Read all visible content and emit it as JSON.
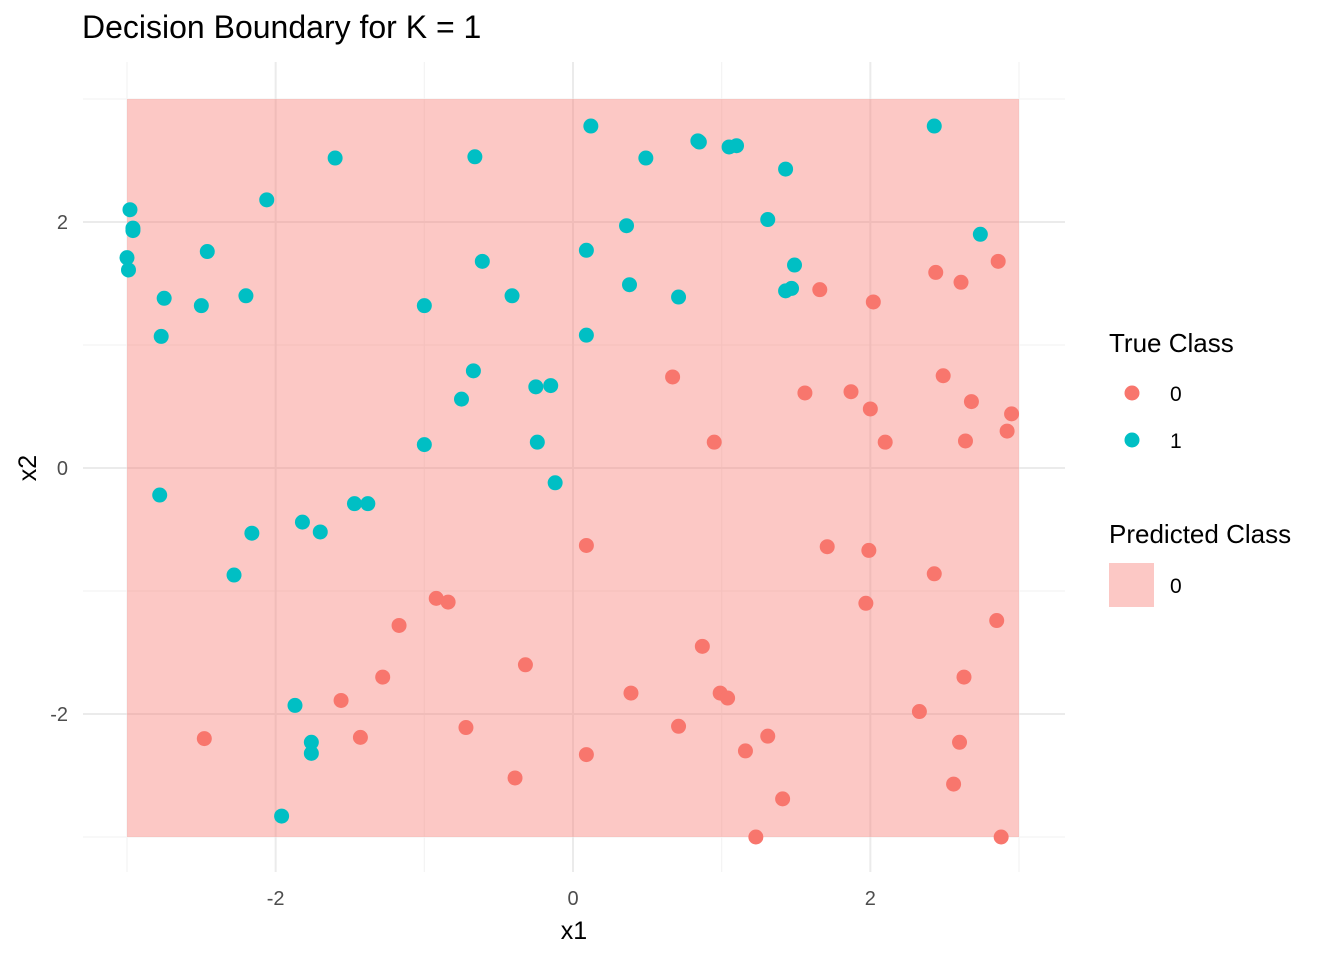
{
  "chart_data": {
    "type": "scatter",
    "title": "Decision Boundary for K = 1",
    "xlabel": "x1",
    "ylabel": "x2",
    "xlim": [
      -3.0,
      3.0
    ],
    "ylim": [
      -3.0,
      3.0
    ],
    "x_ticks": [
      -2,
      0,
      2
    ],
    "y_ticks": [
      -2,
      0,
      2
    ],
    "x_tick_labels": [
      "-2",
      "0",
      "2"
    ],
    "y_tick_labels": [
      "-2",
      "0",
      "2"
    ],
    "grid": true,
    "legend_position": "right",
    "predicted_region": {
      "class_label": "0",
      "color": "#F8766D",
      "opacity": 0.4,
      "x_range": [
        -3.0,
        3.0
      ],
      "y_range": [
        -3.0,
        3.0
      ]
    },
    "legend": {
      "true_class": {
        "title": "True Class",
        "entries": [
          {
            "label": "0",
            "color": "#F8766D"
          },
          {
            "label": "1",
            "color": "#00BFC4"
          }
        ]
      },
      "predicted_class": {
        "title": "Predicted Class",
        "entries": [
          {
            "label": "0",
            "color": "#F8766D"
          }
        ]
      }
    },
    "series": [
      {
        "class": "0",
        "color": "#F8766D",
        "points": [
          [
            0.67,
            0.74
          ],
          [
            0.95,
            0.21
          ],
          [
            1.56,
            0.61
          ],
          [
            1.66,
            1.45
          ],
          [
            1.87,
            0.62
          ],
          [
            2.0,
            0.48
          ],
          [
            2.02,
            1.35
          ],
          [
            2.1,
            0.21
          ],
          [
            2.44,
            1.59
          ],
          [
            2.49,
            0.75
          ],
          [
            2.61,
            1.51
          ],
          [
            2.68,
            0.54
          ],
          [
            2.64,
            0.22
          ],
          [
            2.86,
            1.68
          ],
          [
            2.92,
            0.3
          ],
          [
            2.95,
            0.44
          ],
          [
            0.09,
            -0.63
          ],
          [
            1.71,
            -0.64
          ],
          [
            1.99,
            -0.67
          ],
          [
            1.97,
            -1.1
          ],
          [
            2.43,
            -0.86
          ],
          [
            2.85,
            -1.24
          ],
          [
            -0.92,
            -1.06
          ],
          [
            -0.84,
            -1.09
          ],
          [
            -1.17,
            -1.28
          ],
          [
            -0.32,
            -1.6
          ],
          [
            -1.28,
            -1.7
          ],
          [
            -1.56,
            -1.89
          ],
          [
            -1.43,
            -2.19
          ],
          [
            -2.48,
            -2.2
          ],
          [
            -0.72,
            -2.11
          ],
          [
            -0.39,
            -2.52
          ],
          [
            0.09,
            -2.33
          ],
          [
            0.39,
            -1.83
          ],
          [
            0.71,
            -2.1
          ],
          [
            0.87,
            -1.45
          ],
          [
            0.99,
            -1.83
          ],
          [
            1.04,
            -1.87
          ],
          [
            1.16,
            -2.3
          ],
          [
            1.31,
            -2.18
          ],
          [
            1.41,
            -2.69
          ],
          [
            1.23,
            -3.0
          ],
          [
            2.33,
            -1.98
          ],
          [
            2.6,
            -2.23
          ],
          [
            2.63,
            -1.7
          ],
          [
            2.56,
            -2.57
          ],
          [
            2.88,
            -3.0
          ]
        ]
      },
      {
        "class": "1",
        "color": "#00BFC4",
        "points": [
          [
            -2.98,
            2.1
          ],
          [
            -2.96,
            1.95
          ],
          [
            -2.96,
            1.93
          ],
          [
            -3.0,
            1.71
          ],
          [
            -2.99,
            1.61
          ],
          [
            -2.75,
            1.38
          ],
          [
            -2.77,
            1.07
          ],
          [
            -2.5,
            1.32
          ],
          [
            -2.46,
            1.76
          ],
          [
            -2.2,
            1.4
          ],
          [
            -2.06,
            2.18
          ],
          [
            -1.6,
            2.52
          ],
          [
            -1.0,
            1.32
          ],
          [
            -0.66,
            2.53
          ],
          [
            -0.61,
            1.68
          ],
          [
            -0.41,
            1.4
          ],
          [
            -0.67,
            0.79
          ],
          [
            -0.75,
            0.56
          ],
          [
            -0.25,
            0.66
          ],
          [
            -0.15,
            0.67
          ],
          [
            -0.24,
            0.21
          ],
          [
            -1.0,
            0.19
          ],
          [
            -0.12,
            -0.12
          ],
          [
            0.12,
            2.78
          ],
          [
            0.09,
            1.77
          ],
          [
            0.09,
            1.08
          ],
          [
            0.36,
            1.97
          ],
          [
            0.38,
            1.49
          ],
          [
            0.49,
            2.52
          ],
          [
            0.71,
            1.39
          ],
          [
            0.84,
            2.66
          ],
          [
            0.85,
            2.65
          ],
          [
            1.05,
            2.61
          ],
          [
            1.1,
            2.62
          ],
          [
            1.31,
            2.02
          ],
          [
            1.43,
            2.43
          ],
          [
            1.43,
            1.44
          ],
          [
            1.47,
            1.46
          ],
          [
            1.49,
            1.65
          ],
          [
            2.43,
            2.78
          ],
          [
            2.74,
            1.9
          ],
          [
            -2.78,
            -0.22
          ],
          [
            -2.16,
            -0.53
          ],
          [
            -2.28,
            -0.87
          ],
          [
            -1.82,
            -0.44
          ],
          [
            -1.7,
            -0.52
          ],
          [
            -1.47,
            -0.29
          ],
          [
            -1.38,
            -0.29
          ],
          [
            -1.87,
            -1.93
          ],
          [
            -1.76,
            -2.23
          ],
          [
            -1.76,
            -2.32
          ],
          [
            -1.96,
            -2.83
          ]
        ]
      }
    ]
  }
}
